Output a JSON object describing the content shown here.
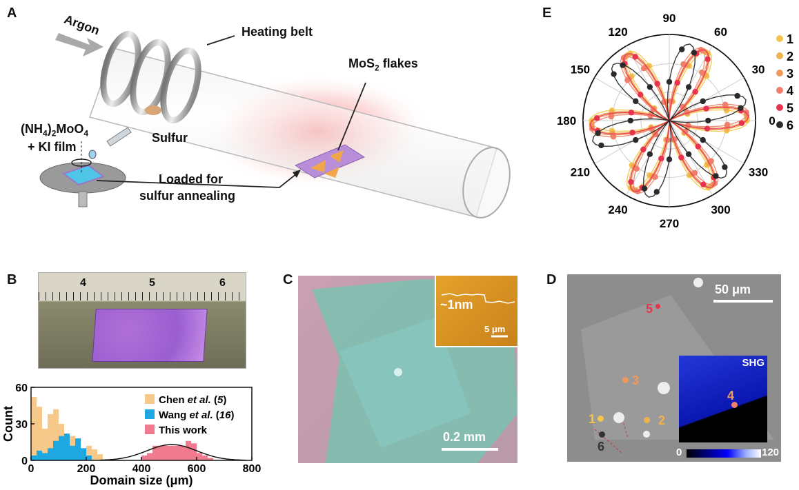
{
  "panels": {
    "a": {
      "label": "A",
      "argon": "Argon",
      "heating_belt": "Heating belt",
      "mos2": {
        "main": "MoS",
        "sub": "2",
        "tail": " flakes"
      },
      "precursor": {
        "p1": "(NH",
        "s1": "4",
        "p2": ")",
        "s2": "2",
        "p3": "MoO",
        "s3": "4"
      },
      "ki_film": "+ KI film",
      "sulfur": "Sulfur",
      "loaded_line1": "Loaded for",
      "loaded_line2": "sulfur annealing"
    },
    "b": {
      "label": "B",
      "ruler_ticks": [
        "4",
        "5",
        "6"
      ],
      "ylabel": "Count",
      "xlabel": "Domain size (μm)",
      "legend": [
        {
          "pre": "Chen ",
          "em": "et al.",
          "post": " (",
          "num": "5",
          "end": ")",
          "color": "#f6c98a"
        },
        {
          "pre": "Wang ",
          "em": "et al.",
          "post": " (",
          "num": "16",
          "end": ")",
          "color": "#1ea7e1"
        },
        {
          "pre": "This work",
          "em": "",
          "post": "",
          "num": "",
          "end": "",
          "color": "#f07b8f"
        }
      ]
    },
    "c": {
      "label": "C",
      "inset_height": "~1nm",
      "inset_scale": "5 μm",
      "scale": "0.2 mm"
    },
    "d": {
      "label": "D",
      "scale": "50 μm",
      "shg": "SHG",
      "colorbar_min": "0",
      "colorbar_max": "120",
      "points": [
        "1",
        "2",
        "3",
        "4",
        "5",
        "6"
      ]
    },
    "e": {
      "label": "E",
      "angles": [
        "90",
        "60",
        "30",
        "0",
        "330",
        "300",
        "270",
        "240",
        "210",
        "180",
        "150",
        "120"
      ],
      "legend": [
        "1",
        "2",
        "3",
        "4",
        "5",
        "6"
      ]
    }
  },
  "colors": {
    "p1": "#f2c64c",
    "p2": "#f0b24e",
    "p3": "#ee9a5c",
    "p4": "#ef7f6a",
    "p5": "#e8334f",
    "p6": "#2b2b2b"
  },
  "chart_data": {
    "type": "bar",
    "title": "",
    "xlabel": "Domain size (μm)",
    "ylabel": "Count",
    "xlim": [
      0,
      800
    ],
    "ylim": [
      0,
      60
    ],
    "xticks": [
      0,
      200,
      400,
      600,
      800
    ],
    "yticks": [
      0,
      30,
      60
    ],
    "bin_width": 20,
    "series": [
      {
        "name": "Chen et al. (5)",
        "x": [
          10,
          30,
          50,
          70,
          90,
          110,
          130,
          150,
          170,
          190,
          210,
          230,
          250
        ],
        "values": [
          52,
          44,
          26,
          38,
          42,
          30,
          16,
          20,
          18,
          6,
          12,
          9,
          5
        ]
      },
      {
        "name": "Wang et al. (16)",
        "x": [
          10,
          30,
          50,
          70,
          90,
          110,
          130,
          150,
          170,
          190,
          210
        ],
        "values": [
          4,
          8,
          6,
          10,
          16,
          20,
          22,
          12,
          18,
          10,
          4
        ]
      },
      {
        "name": "This work",
        "x": [
          410,
          430,
          450,
          470,
          490,
          510,
          530,
          550,
          570,
          590,
          610,
          630,
          650
        ],
        "values": [
          4,
          6,
          12,
          12,
          12,
          12,
          12,
          12,
          16,
          14,
          6,
          4,
          2
        ],
        "fit_center": 510,
        "fit_sigma": 90,
        "fit_peak": 13
      }
    ]
  }
}
